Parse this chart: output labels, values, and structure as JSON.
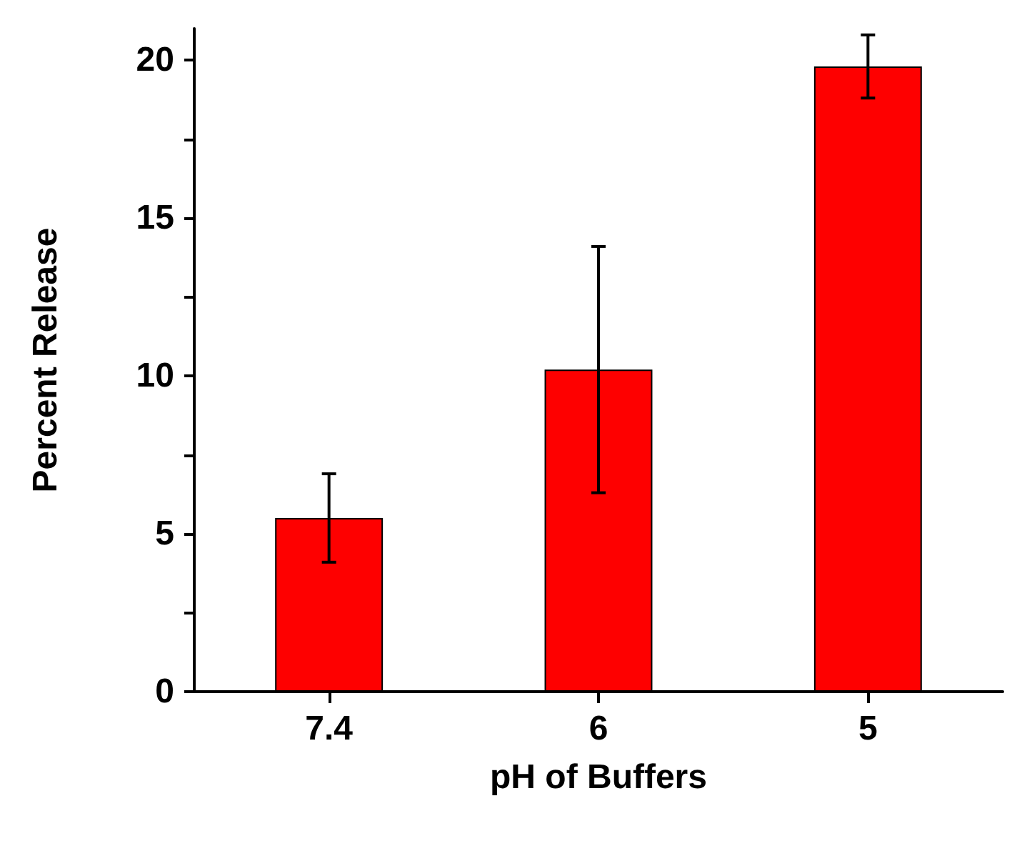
{
  "chart_data": {
    "type": "bar",
    "xlabel": "pH of Buffers",
    "ylabel": "Percent Release",
    "categories": [
      "7.4",
      "6",
      "5"
    ],
    "values": [
      5.5,
      10.2,
      19.8
    ],
    "errors": [
      1.4,
      3.9,
      1.0
    ],
    "color": "#fe0000",
    "ylim": [
      0,
      21
    ],
    "yticks": [
      0,
      {
        "value": 2.5,
        "label": null
      },
      5,
      {
        "value": 7.5,
        "label": null
      },
      10,
      {
        "value": 12.5,
        "label": null
      },
      15,
      {
        "value": 17.5,
        "label": null
      },
      20
    ],
    "grid": false
  }
}
